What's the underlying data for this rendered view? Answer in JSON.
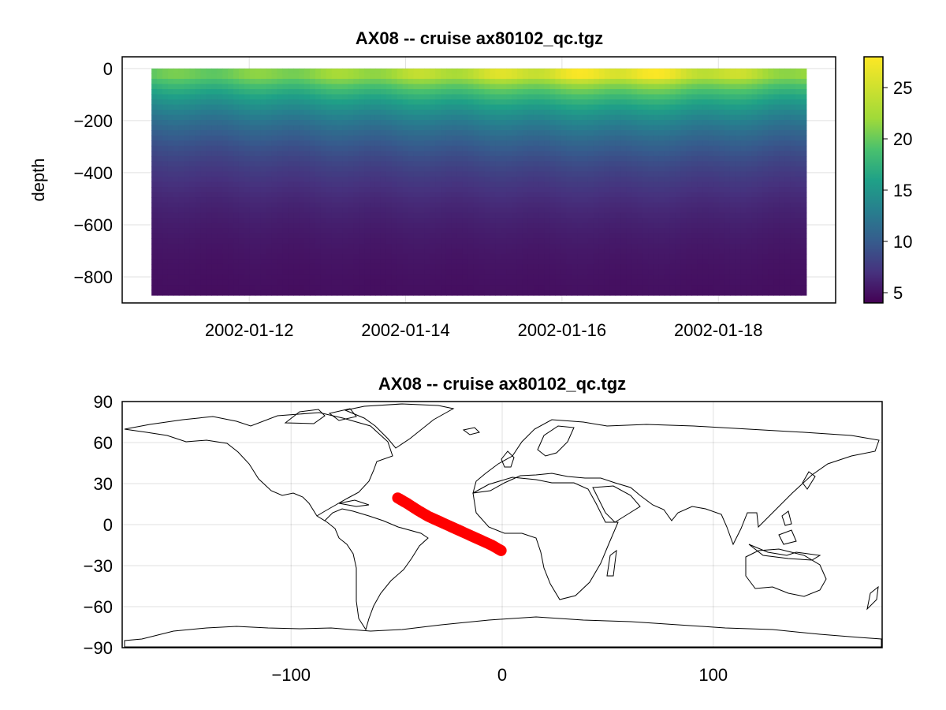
{
  "chart_data": [
    {
      "type": "heatmap",
      "title": "AX08 -- cruise ax80102_qc.tgz",
      "xlabel": "",
      "ylabel": "depth",
      "x_ticks": [
        "2002-01-12",
        "2002-01-14",
        "2002-01-16",
        "2002-01-18"
      ],
      "x_range": [
        "2002-01-10T09:00",
        "2002-01-19T12:00"
      ],
      "x_data_range": [
        "2002-01-10T18:00",
        "2002-01-19T03:00"
      ],
      "ylim": [
        -900,
        45
      ],
      "y_ticks": [
        0,
        -200,
        -400,
        -600,
        -800
      ],
      "depth_range": [
        0,
        -870
      ],
      "colormap": "viridis",
      "colorbar": {
        "min": 4,
        "max": 28,
        "ticks": [
          5,
          10,
          15,
          20,
          25
        ]
      },
      "surface_temperature_profile": [
        {
          "x": "2002-01-10T18:00",
          "value": 22
        },
        {
          "x": "2002-01-12T00:00",
          "value": 23
        },
        {
          "x": "2002-01-14T00:00",
          "value": 25
        },
        {
          "x": "2002-01-16T00:00",
          "value": 27
        },
        {
          "x": "2002-01-17T00:00",
          "value": 27.5
        },
        {
          "x": "2002-01-18T00:00",
          "value": 26
        },
        {
          "x": "2002-01-19T03:00",
          "value": 24
        }
      ],
      "grid": true
    },
    {
      "type": "scatter",
      "title": "AX08 -- cruise ax80102_qc.tgz",
      "xlabel": "",
      "ylabel": "",
      "xlim": [
        -180,
        180
      ],
      "ylim": [
        -90,
        90
      ],
      "x_ticks": [
        -100,
        0,
        100
      ],
      "y_ticks": [
        90,
        60,
        30,
        0,
        -30,
        -60,
        -90
      ],
      "track_color": "#ff0000",
      "track": [
        {
          "lon": -49.5,
          "lat": 19.5
        },
        {
          "lon": -45,
          "lat": 15.5
        },
        {
          "lon": -40,
          "lat": 10.5
        },
        {
          "lon": -35,
          "lat": 6
        },
        {
          "lon": -30,
          "lat": 2.5
        },
        {
          "lon": -25,
          "lat": -1
        },
        {
          "lon": -20,
          "lat": -4.5
        },
        {
          "lon": -15,
          "lat": -8
        },
        {
          "lon": -10,
          "lat": -11.5
        },
        {
          "lon": -5,
          "lat": -15
        },
        {
          "lon": -0.5,
          "lat": -19
        }
      ],
      "grid": true
    }
  ]
}
